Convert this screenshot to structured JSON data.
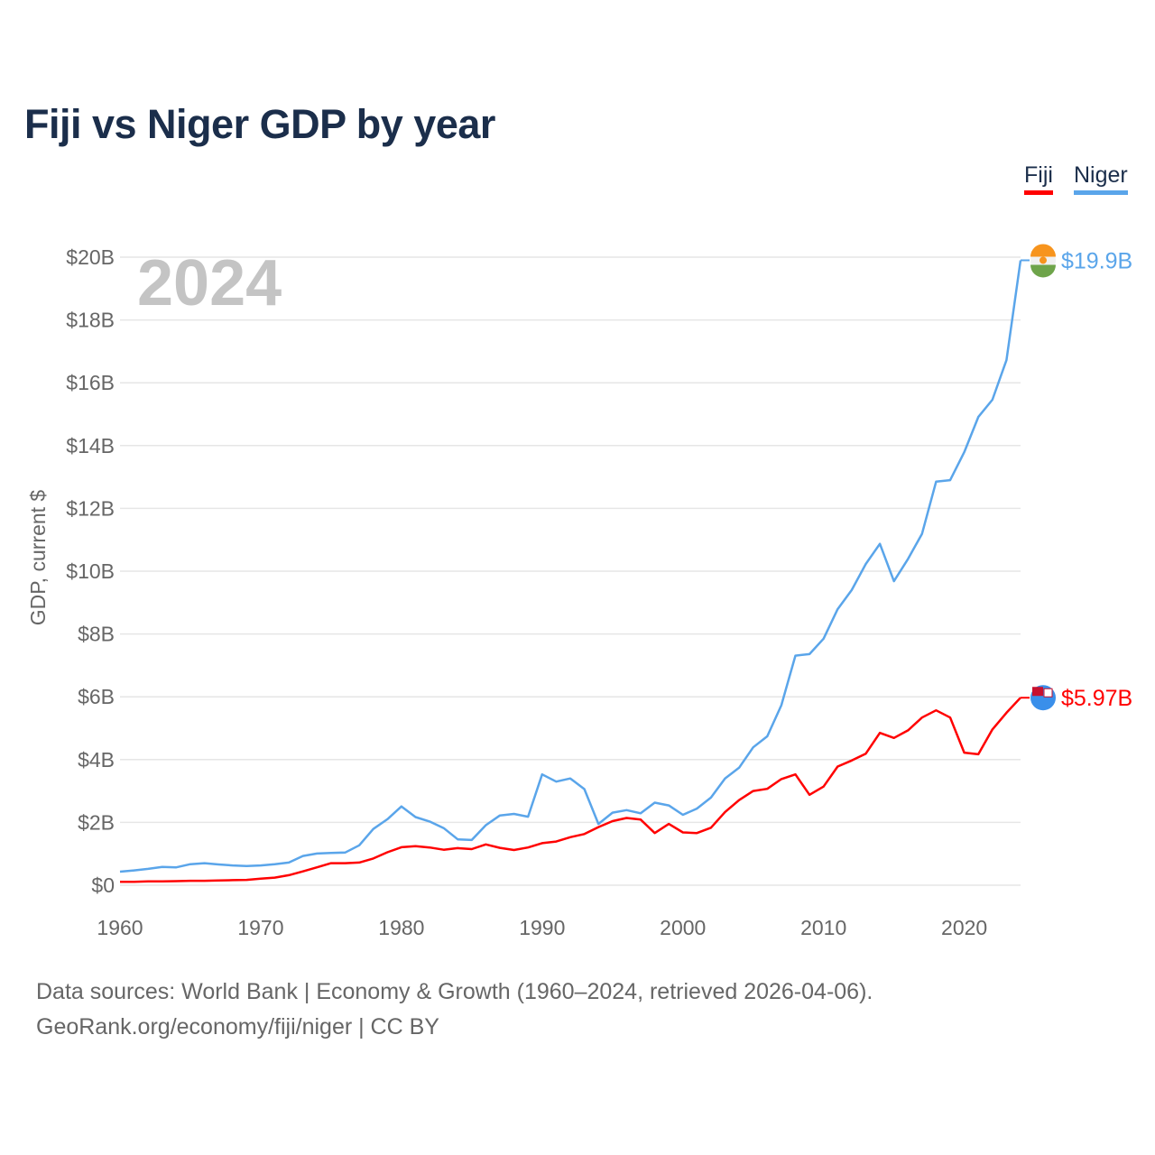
{
  "title": "Fiji vs Niger GDP by year",
  "legend": [
    {
      "label": "Fiji",
      "color": "#ff0000"
    },
    {
      "label": "Niger",
      "color": "#5aa5ea"
    }
  ],
  "footer": {
    "line1": "Data sources: World Bank | Economy & Growth (1960–2024, retrieved 2026-04-06).",
    "line2": "GeoRank.org/economy/fiji/niger | CC BY"
  },
  "chart_data": {
    "type": "line",
    "title": "Fiji vs Niger GDP by year",
    "xlabel": "",
    "ylabel": "GDP, current $",
    "year_watermark": "2024",
    "xlim": [
      1960,
      2024
    ],
    "ylim": [
      0,
      20
    ],
    "unit": "billion USD",
    "xticks": [
      1960,
      1970,
      1980,
      1990,
      2000,
      2010,
      2020
    ],
    "xtick_labels": [
      "1960",
      "1970",
      "1980",
      "1990",
      "2000",
      "2010",
      "2020"
    ],
    "yticks": [
      0,
      2,
      4,
      6,
      8,
      10,
      12,
      14,
      16,
      18,
      20
    ],
    "ytick_labels": [
      "$0",
      "$2B",
      "$4B",
      "$6B",
      "$8B",
      "$10B",
      "$12B",
      "$14B",
      "$16B",
      "$18B",
      "$20B"
    ],
    "grid": true,
    "legend_position": "top-right",
    "x_start": 1960,
    "series": [
      {
        "name": "Fiji",
        "color": "#ff0000",
        "end_label": "$5.97B",
        "flag": "fiji-flag",
        "values": [
          0.11,
          0.11,
          0.12,
          0.12,
          0.13,
          0.14,
          0.14,
          0.15,
          0.16,
          0.17,
          0.21,
          0.24,
          0.32,
          0.44,
          0.57,
          0.7,
          0.7,
          0.72,
          0.85,
          1.05,
          1.21,
          1.24,
          1.2,
          1.13,
          1.18,
          1.15,
          1.3,
          1.19,
          1.12,
          1.2,
          1.34,
          1.39,
          1.53,
          1.63,
          1.85,
          2.04,
          2.14,
          2.09,
          1.66,
          1.95,
          1.68,
          1.66,
          1.83,
          2.33,
          2.71,
          3.0,
          3.07,
          3.38,
          3.53,
          2.88,
          3.14,
          3.78,
          3.97,
          4.19,
          4.85,
          4.69,
          4.93,
          5.34,
          5.57,
          5.34,
          4.22,
          4.17,
          4.96,
          5.49,
          5.97
        ]
      },
      {
        "name": "Niger",
        "color": "#5aa5ea",
        "end_label": "$19.9B",
        "flag": "niger-flag",
        "values": [
          0.43,
          0.47,
          0.52,
          0.58,
          0.57,
          0.67,
          0.7,
          0.66,
          0.63,
          0.61,
          0.63,
          0.67,
          0.72,
          0.93,
          1.01,
          1.03,
          1.04,
          1.27,
          1.79,
          2.1,
          2.51,
          2.17,
          2.03,
          1.82,
          1.46,
          1.44,
          1.91,
          2.22,
          2.27,
          2.18,
          3.53,
          3.3,
          3.4,
          3.06,
          1.95,
          2.31,
          2.39,
          2.29,
          2.63,
          2.54,
          2.24,
          2.44,
          2.79,
          3.4,
          3.74,
          4.39,
          4.74,
          5.73,
          7.31,
          7.36,
          7.85,
          8.79,
          9.4,
          10.23,
          10.87,
          9.68,
          10.39,
          11.19,
          12.85,
          12.9,
          13.79,
          14.91,
          15.46,
          16.72,
          19.9
        ]
      }
    ]
  }
}
